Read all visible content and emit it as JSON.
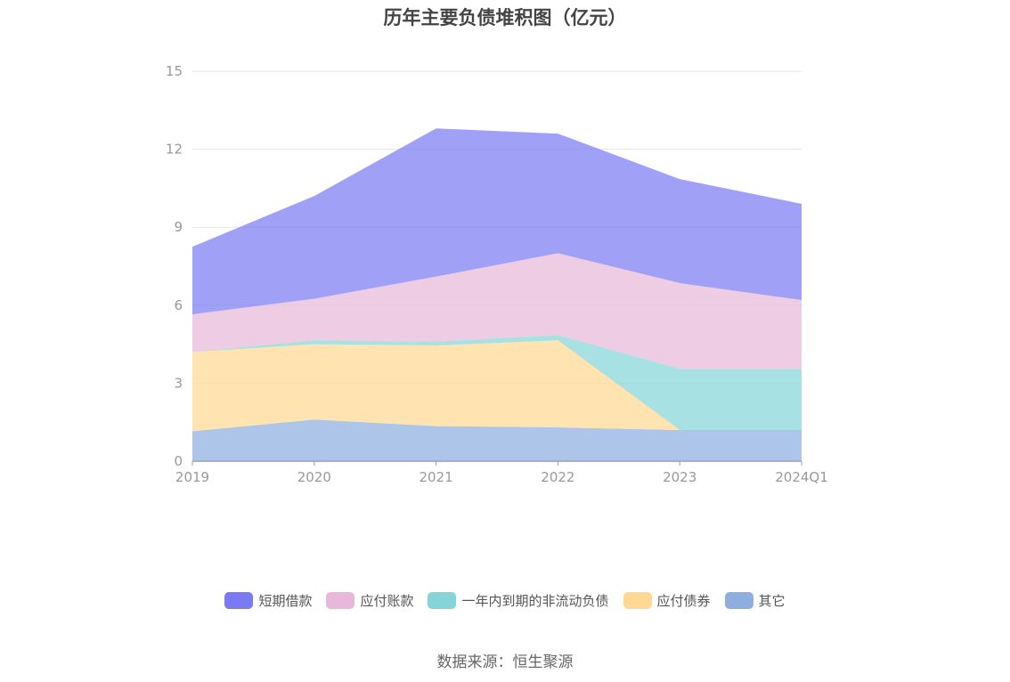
{
  "chart_data": {
    "type": "area",
    "stacked": true,
    "title": "历年主要负债堆积图（亿元）",
    "categories": [
      "2019",
      "2020",
      "2021",
      "2022",
      "2023",
      "2024Q1"
    ],
    "ylim": [
      0,
      15
    ],
    "yticks": [
      "0",
      "3",
      "6",
      "9",
      "12",
      "15"
    ],
    "grid": true,
    "legend_position": "bottom",
    "series": [
      {
        "name": "其它",
        "color": "#8eaee0",
        "values": [
          1.15,
          1.6,
          1.35,
          1.3,
          1.2,
          1.2
        ]
      },
      {
        "name": "应付债券",
        "color": "#ffd994",
        "values": [
          3.05,
          2.9,
          3.1,
          3.35,
          0.0,
          0.0
        ]
      },
      {
        "name": "一年内到期的非流动负债",
        "color": "#85d5d8",
        "values": [
          0.0,
          0.15,
          0.15,
          0.2,
          2.35,
          2.35
        ]
      },
      {
        "name": "应付账款",
        "color": "#e8b8da",
        "values": [
          1.45,
          1.6,
          2.5,
          3.15,
          3.3,
          2.65
        ]
      },
      {
        "name": "短期借款",
        "color": "#7a7bf2",
        "values": [
          2.6,
          3.95,
          5.7,
          4.6,
          4.0,
          3.7
        ]
      }
    ]
  },
  "legend": [
    {
      "label": "短期借款",
      "color": "#7a7bf2"
    },
    {
      "label": "应付账款",
      "color": "#e8b8da"
    },
    {
      "label": "一年内到期的非流动负债",
      "color": "#85d5d8"
    },
    {
      "label": "应付债券",
      "color": "#ffd994"
    },
    {
      "label": "其它",
      "color": "#8eaee0"
    }
  ],
  "source": "数据来源：恒生聚源"
}
